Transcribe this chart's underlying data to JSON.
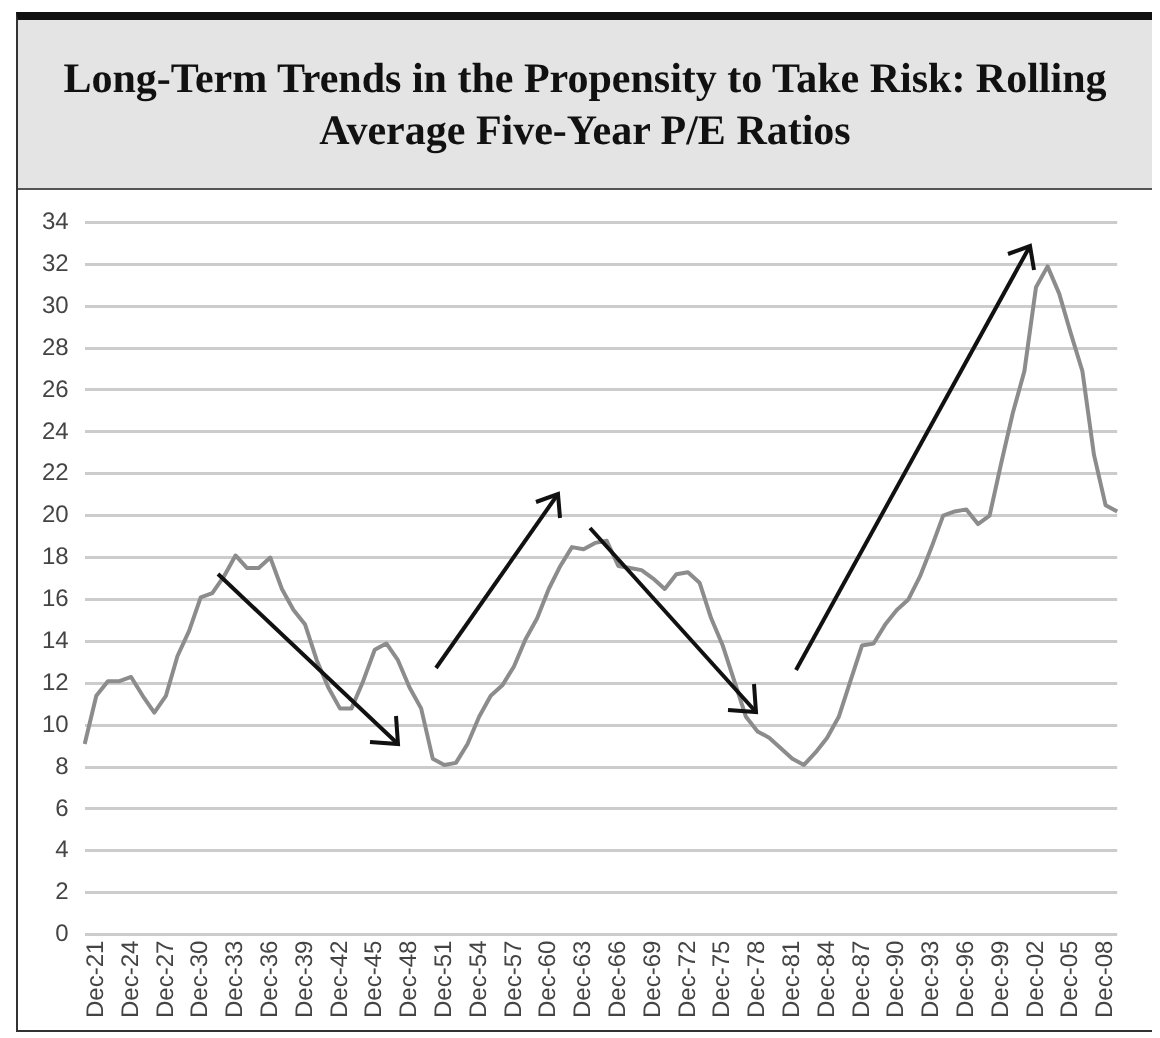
{
  "chart_data": {
    "type": "line",
    "title": "Long-Term Trends in the Propensity to Take Risk: Rolling Average Five-Year P/E Ratios",
    "categories": [
      null,
      "Dec-21",
      null,
      null,
      "Dec-24",
      null,
      null,
      "Dec-27",
      null,
      null,
      "Dec-30",
      null,
      null,
      "Dec-33",
      null,
      null,
      "Dec-36",
      null,
      null,
      "Dec-39",
      null,
      null,
      "Dec-42",
      null,
      null,
      "Dec-45",
      null,
      null,
      "Dec-48",
      null,
      null,
      "Dec-51",
      null,
      null,
      "Dec-54",
      null,
      null,
      "Dec-57",
      null,
      null,
      "Dec-60",
      null,
      null,
      "Dec-63",
      null,
      null,
      "Dec-66",
      null,
      null,
      "Dec-69",
      null,
      null,
      "Dec-72",
      null,
      null,
      "Dec-75",
      null,
      null,
      "Dec-78",
      null,
      null,
      "Dec-81",
      null,
      null,
      "Dec-84",
      null,
      null,
      "Dec-87",
      null,
      null,
      "Dec-90",
      null,
      null,
      "Dec-93",
      null,
      null,
      "Dec-96",
      null,
      null,
      "Dec-99",
      null,
      null,
      "Dec-02",
      null,
      null,
      "Dec-05",
      null,
      null,
      "Dec-08",
      null
    ],
    "series": [
      {
        "color": "#8c8c8c",
        "values": [
          9.1,
          11.4,
          12.1,
          12.1,
          12.3,
          11.4,
          10.6,
          11.4,
          13.3,
          14.5,
          16.1,
          16.3,
          17.1,
          18.1,
          17.5,
          17.5,
          18.0,
          16.5,
          15.5,
          14.8,
          13.1,
          11.8,
          10.8,
          10.8,
          12.1,
          13.6,
          13.9,
          13.1,
          11.8,
          10.8,
          8.4,
          8.1,
          8.2,
          9.1,
          10.4,
          11.4,
          11.9,
          12.8,
          14.1,
          15.1,
          16.5,
          17.6,
          18.5,
          18.4,
          18.7,
          18.8,
          17.6,
          17.5,
          17.4,
          17.0,
          16.5,
          17.2,
          17.3,
          16.8,
          15.1,
          13.8,
          12.1,
          10.4,
          9.7,
          9.4,
          8.9,
          8.4,
          8.1,
          8.7,
          9.4,
          10.4,
          12.1,
          13.8,
          13.9,
          14.8,
          15.5,
          16.0,
          17.1,
          18.5,
          20.0,
          20.2,
          20.3,
          19.6,
          20.0,
          22.5,
          24.9,
          26.9,
          30.9,
          31.9,
          30.6,
          28.7,
          26.9,
          22.9,
          20.5,
          20.2
        ]
      }
    ],
    "ylim": [
      0,
      34
    ],
    "yticks": [
      0,
      2,
      4,
      6,
      8,
      10,
      12,
      14,
      16,
      18,
      20,
      22,
      24,
      26,
      28,
      30,
      32,
      34
    ],
    "grid": "y",
    "legend": false,
    "marker": "none",
    "line_style": "solid"
  }
}
